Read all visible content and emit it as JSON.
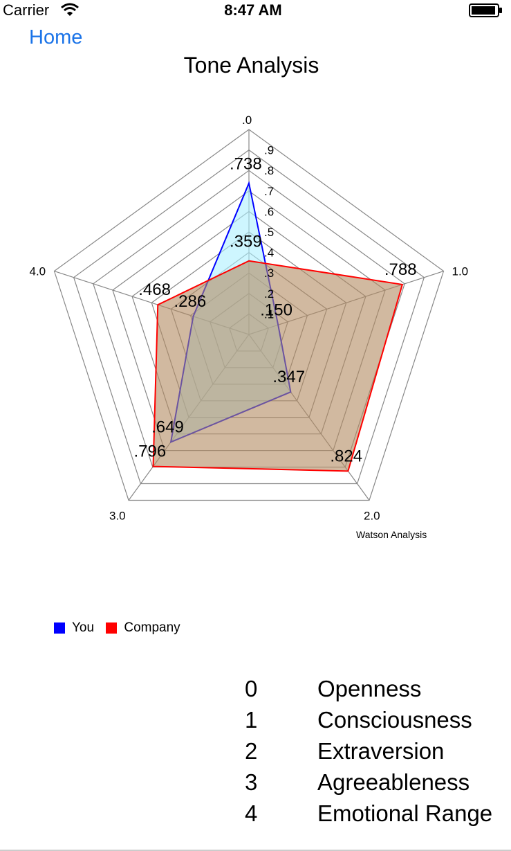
{
  "status_bar": {
    "carrier": "Carrier",
    "time": "8:47 AM"
  },
  "nav": {
    "back_label": "Home"
  },
  "title": "Tone Analysis",
  "chart_data": {
    "type": "radar",
    "axes": [
      "0",
      "1",
      "2",
      "3",
      "4"
    ],
    "axis_labels": [
      ".0",
      "1.0",
      "2.0",
      "3.0",
      "4.0"
    ],
    "ring_ticks": [
      ".1",
      ".2",
      ".3",
      ".4",
      ".5",
      ".6",
      ".7",
      ".8",
      ".9"
    ],
    "rmax": 1.0,
    "series": [
      {
        "name": "You",
        "values": [
          0.738,
          0.15,
          0.347,
          0.649,
          0.286
        ],
        "labels": [
          ".738",
          ".150",
          ".347",
          ".649",
          ".286"
        ],
        "color": "#0000ff",
        "fill": "#aef0ff"
      },
      {
        "name": "Company",
        "values": [
          0.359,
          0.788,
          0.824,
          0.796,
          0.468
        ],
        "labels": [
          ".359",
          ".788",
          ".824",
          ".796",
          ".468"
        ],
        "color": "#ff0000",
        "fill": "#b38b61"
      }
    ],
    "description": "Watson Analysis",
    "legend_position": "bottom-left"
  },
  "dimensions": [
    {
      "index": "0",
      "name": "Openness"
    },
    {
      "index": "1",
      "name": "Consciousness"
    },
    {
      "index": "2",
      "name": "Extraversion"
    },
    {
      "index": "3",
      "name": "Agreeableness"
    },
    {
      "index": "4",
      "name": "Emotional Range"
    }
  ]
}
